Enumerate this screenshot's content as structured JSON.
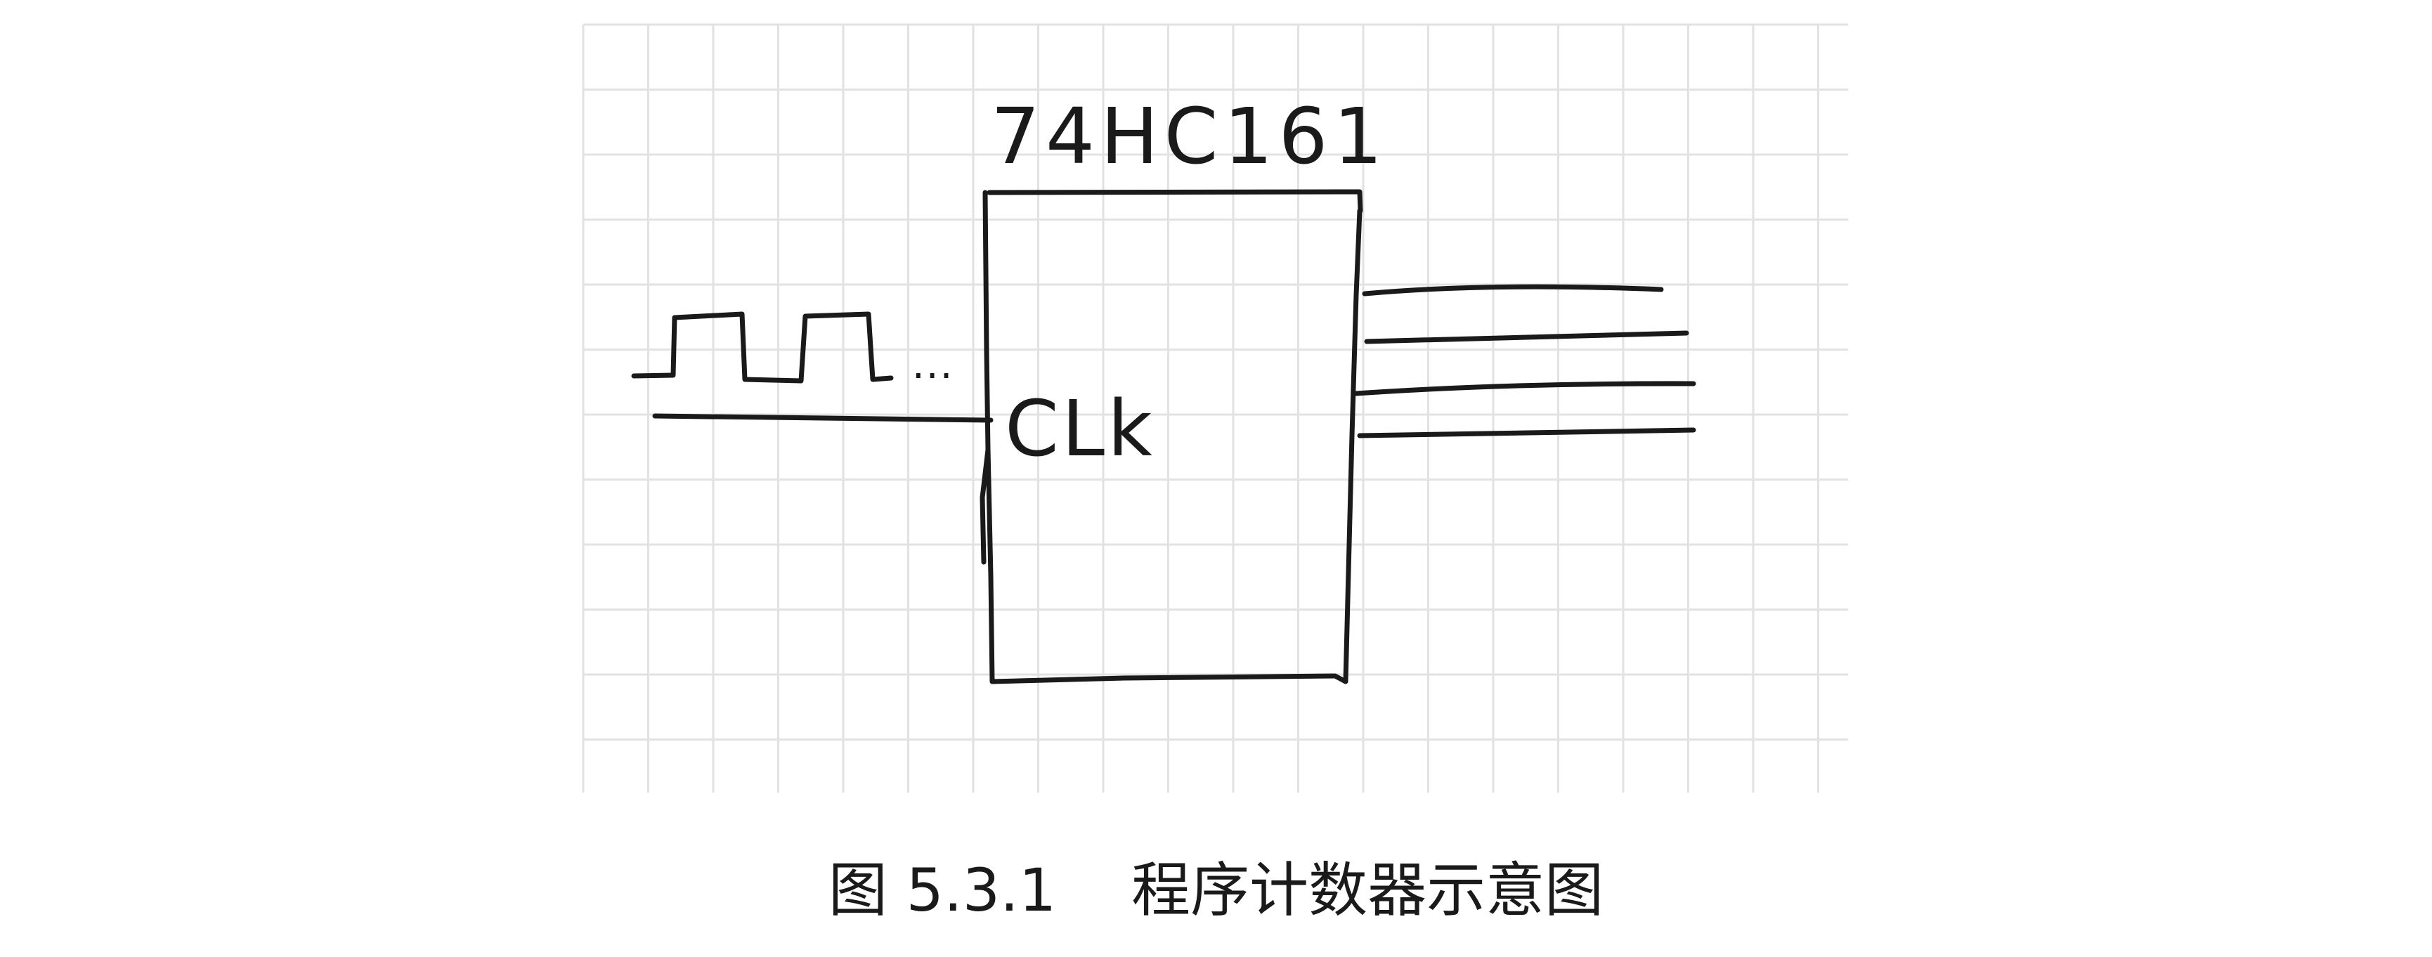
{
  "diagram": {
    "chip_label": "74HC161",
    "clock_pin_label": "CLk",
    "ellipsis": "..."
  },
  "caption": {
    "figure_number": "图 5.3.1",
    "title": "程序计数器示意图"
  },
  "colors": {
    "ink": "#1a1a1a",
    "grid": "#e2e2e2",
    "background": "#ffffff"
  }
}
